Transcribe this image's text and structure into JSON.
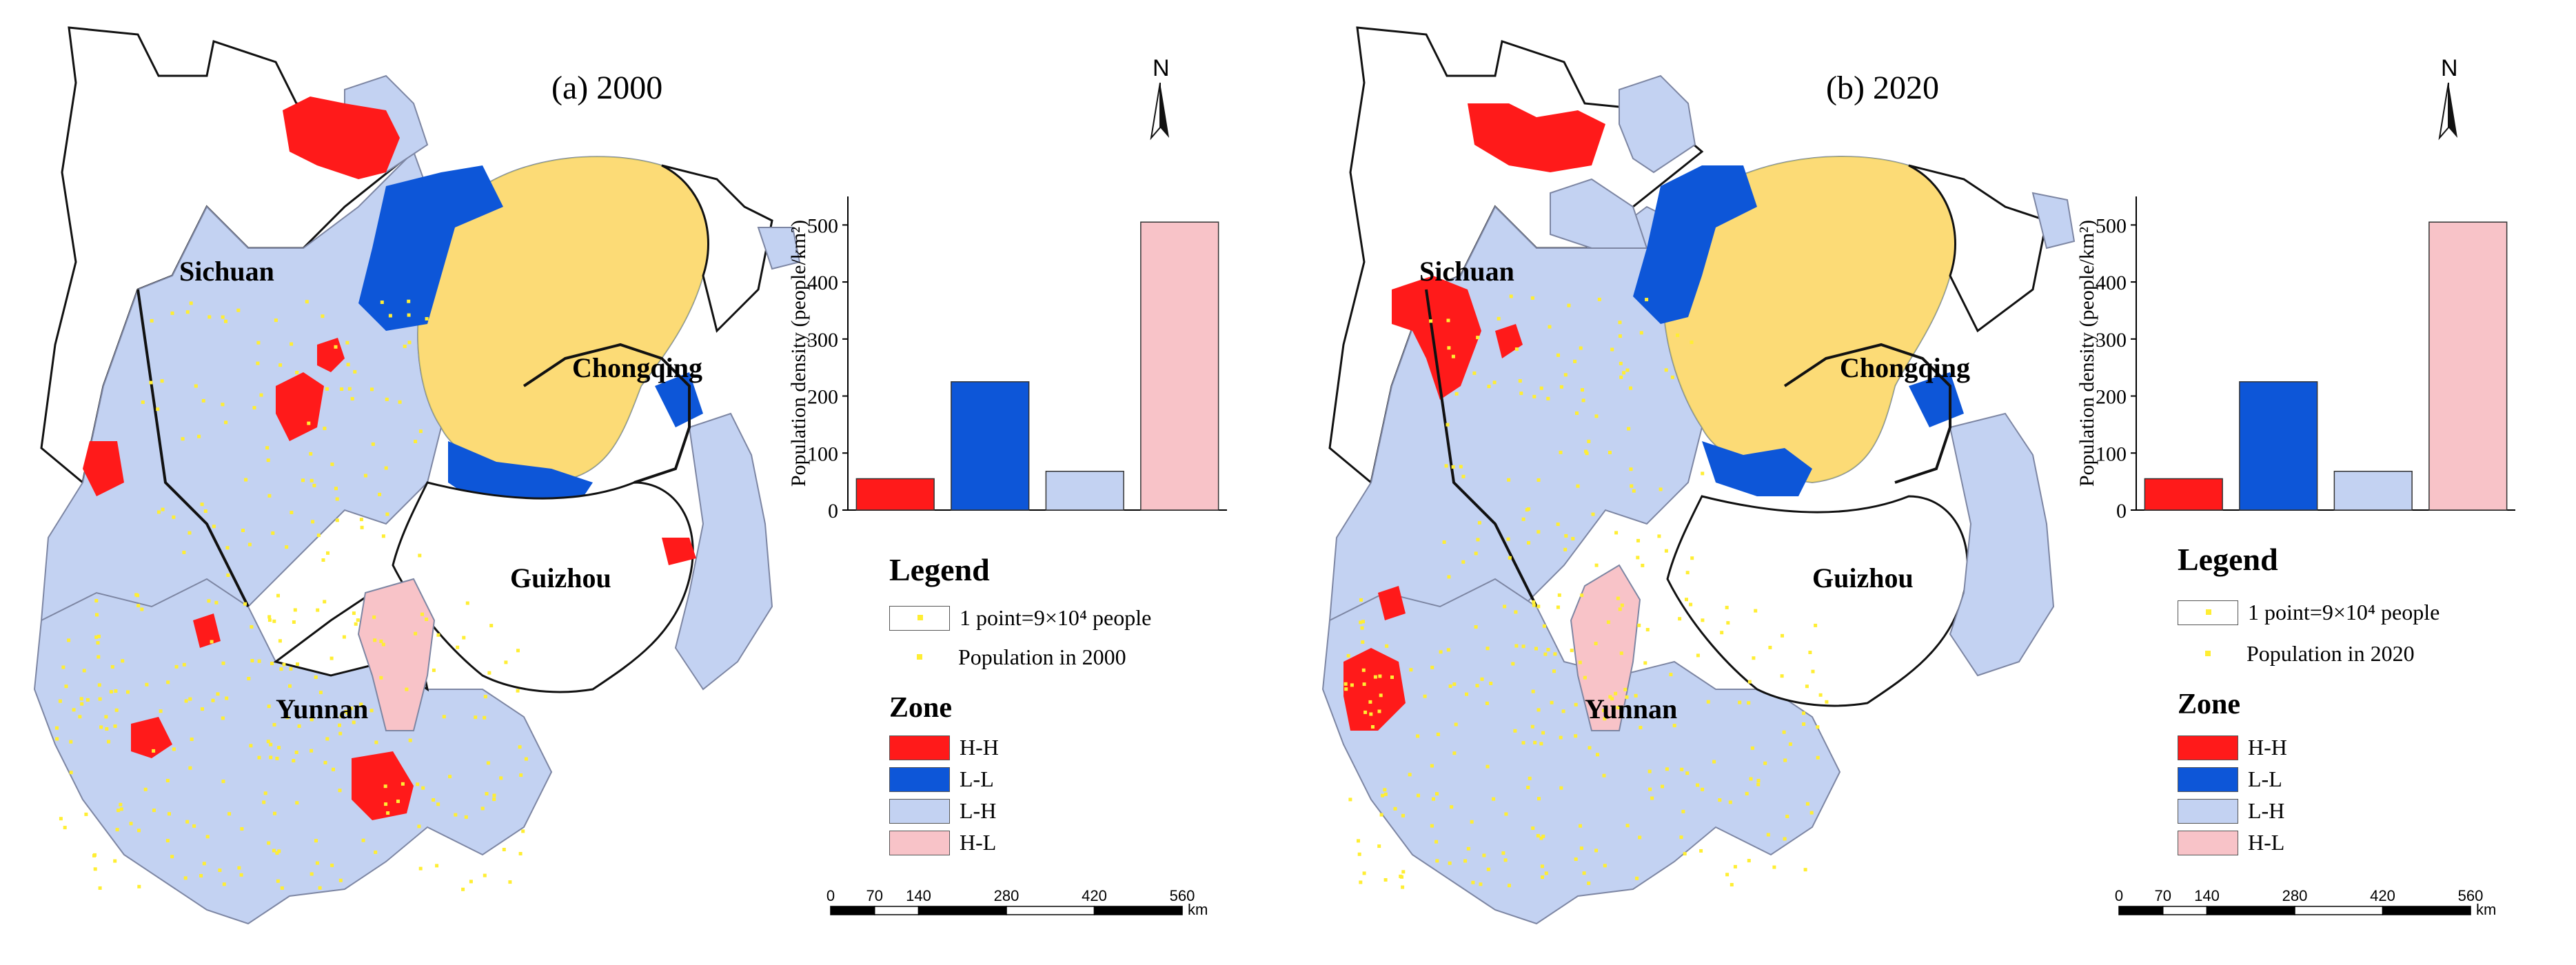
{
  "colors": {
    "hh": "#ff1a1a",
    "ll": "#0d56d8",
    "lh": "#c3d2f2",
    "hl": "#f8c3c8",
    "point": "#ffee33",
    "boundary": "#111111",
    "county": "#7d86a3"
  },
  "panels": [
    {
      "id": "a",
      "title": "(a) 2000",
      "north_label": "N",
      "provinces": {
        "sichuan": "Sichuan",
        "chongqing": "Chongqing",
        "guizhou": "Guizhou",
        "yunnan": "Yunnan"
      },
      "legend": {
        "title": "Legend",
        "point_label": "1 point=9×10⁴ people",
        "population_label": "Population in 2000"
      },
      "zone": {
        "title": "Zone",
        "items": [
          {
            "label": "H-H",
            "color_key": "hh"
          },
          {
            "label": "L-L",
            "color_key": "ll"
          },
          {
            "label": "L-H",
            "color_key": "lh"
          },
          {
            "label": "H-L",
            "color_key": "hl"
          }
        ]
      },
      "chart_data": {
        "type": "bar",
        "categories": [
          "H-H",
          "L-L",
          "L-H",
          "H-L"
        ],
        "values": [
          55,
          225,
          68,
          505
        ],
        "colors": [
          "#ff1a1a",
          "#0d56d8",
          "#c3d2f2",
          "#f8c3c8"
        ],
        "ylabel": "Population density (people/km²)",
        "ylim": [
          0,
          550
        ],
        "yticks": [
          "0",
          "100",
          "200",
          "300",
          "400",
          "500"
        ]
      },
      "scale": {
        "ticks": [
          "0",
          "70",
          "140",
          "280",
          "420",
          "560"
        ],
        "unit": "km"
      }
    },
    {
      "id": "b",
      "title": "(b) 2020",
      "north_label": "N",
      "provinces": {
        "sichuan": "Sichuan",
        "chongqing": "Chongqing",
        "guizhou": "Guizhou",
        "yunnan": "Yunnan"
      },
      "legend": {
        "title": "Legend",
        "point_label": "1 point=9×10⁴ people",
        "population_label": "Population in 2020"
      },
      "zone": {
        "title": "Zone",
        "items": [
          {
            "label": "H-H",
            "color_key": "hh"
          },
          {
            "label": "L-L",
            "color_key": "ll"
          },
          {
            "label": "L-H",
            "color_key": "lh"
          },
          {
            "label": "H-L",
            "color_key": "hl"
          }
        ]
      },
      "chart_data": {
        "type": "bar",
        "categories": [
          "H-H",
          "L-L",
          "L-H",
          "H-L"
        ],
        "values": [
          55,
          225,
          68,
          505
        ],
        "colors": [
          "#ff1a1a",
          "#0d56d8",
          "#c3d2f2",
          "#f8c3c8"
        ],
        "ylabel": "Population density (people/km²)",
        "ylim": [
          0,
          550
        ],
        "yticks": [
          "0",
          "100",
          "200",
          "300",
          "400",
          "500"
        ]
      },
      "scale": {
        "ticks": [
          "0",
          "70",
          "140",
          "280",
          "420",
          "560"
        ],
        "unit": "km"
      }
    }
  ]
}
